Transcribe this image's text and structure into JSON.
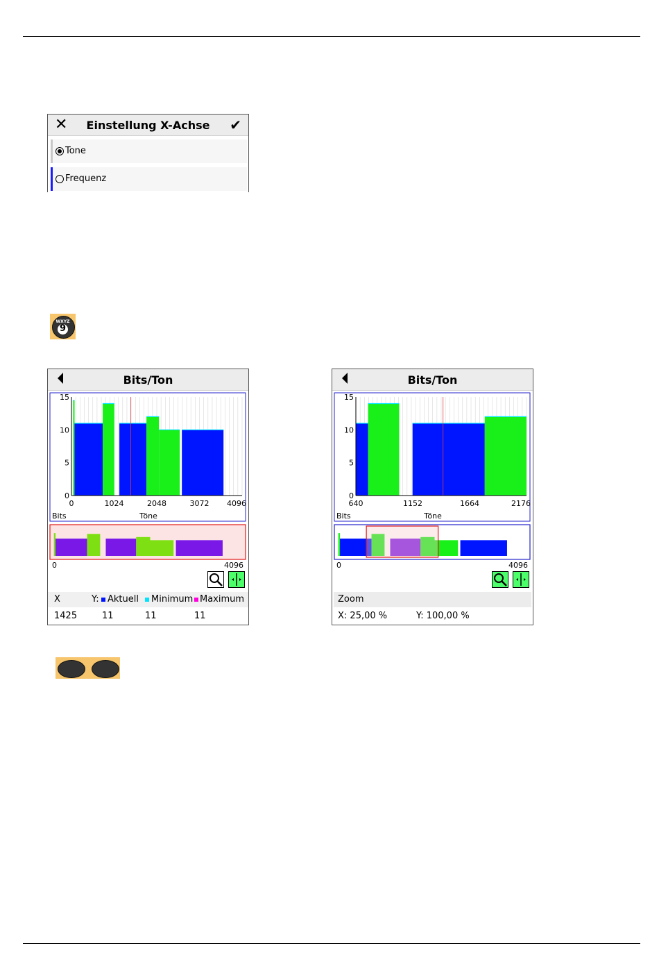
{
  "dialog": {
    "title": "Einstellung X-Achse",
    "options": [
      {
        "label": "Tone",
        "selected": true
      },
      {
        "label": "Frequenz",
        "selected": false
      }
    ]
  },
  "keys": {
    "nine_key": {
      "letters": "WXYZ",
      "digit": "9"
    }
  },
  "colors": {
    "aktuell": "#0015ff",
    "minimum": "#00e5ff",
    "maximum": "#ff00dd",
    "green": "#19f01a",
    "purple": "#7a18e8",
    "lime": "#7ee012",
    "overview_bg": "#fde4e4"
  },
  "screen_left": {
    "title": "Bits/Ton",
    "chart_data": {
      "type": "bar",
      "ylim": [
        0,
        15
      ],
      "xlim": [
        0,
        4096
      ],
      "xticks": [
        "0",
        "1024",
        "2048",
        "3072",
        "4096"
      ],
      "yticks": [
        "15",
        "10",
        "5",
        "0"
      ],
      "ylabel": "Bits",
      "xlabel": "Töne",
      "cursor_x": 1425,
      "segments": [
        {
          "x0": 40,
          "x1": 75,
          "y": 14.5,
          "kind": "green"
        },
        {
          "x0": 75,
          "x1": 750,
          "y": 11,
          "kind": "blue"
        },
        {
          "x0": 750,
          "x1": 1030,
          "y": 14,
          "kind": "green"
        },
        {
          "x0": 1150,
          "x1": 1800,
          "y": 11,
          "kind": "blue"
        },
        {
          "x0": 1800,
          "x1": 2100,
          "y": 12,
          "kind": "green"
        },
        {
          "x0": 2100,
          "x1": 2600,
          "y": 10,
          "kind": "green"
        },
        {
          "x0": 2650,
          "x1": 3650,
          "y": 10,
          "kind": "blue"
        }
      ],
      "overview": {
        "xlim": [
          0,
          4096
        ],
        "ticks": [
          "0",
          "4096"
        ],
        "window": [
          0,
          4096
        ]
      }
    },
    "table": {
      "headers": [
        "X",
        "Y:",
        "Aktuell",
        "Minimum",
        "Maximum"
      ],
      "values": [
        "1425",
        "11",
        "11",
        "11"
      ]
    }
  },
  "screen_right": {
    "title": "Bits/Ton",
    "chart_data": {
      "type": "bar",
      "ylim": [
        0,
        15
      ],
      "xlim": [
        640,
        2176
      ],
      "xticks": [
        "640",
        "1152",
        "1664",
        "2176"
      ],
      "yticks": [
        "15",
        "10",
        "5",
        "0"
      ],
      "ylabel": "Bits",
      "xlabel": "Töne",
      "cursor_x": 1425,
      "segments": [
        {
          "x0": 640,
          "x1": 750,
          "y": 11,
          "kind": "blue"
        },
        {
          "x0": 750,
          "x1": 1030,
          "y": 14,
          "kind": "green"
        },
        {
          "x0": 1030,
          "x1": 1160,
          "y": 0,
          "kind": "blue"
        },
        {
          "x0": 1150,
          "x1": 1800,
          "y": 11,
          "kind": "blue"
        },
        {
          "x0": 1800,
          "x1": 2176,
          "y": 12,
          "kind": "green"
        }
      ],
      "overview": {
        "xlim": [
          0,
          4096
        ],
        "ticks": [
          "0",
          "4096"
        ],
        "window": [
          640,
          2176
        ]
      }
    },
    "zoom": {
      "label": "Zoom",
      "x": "X: 25,00 %",
      "y": "Y: 100,00 %"
    }
  }
}
